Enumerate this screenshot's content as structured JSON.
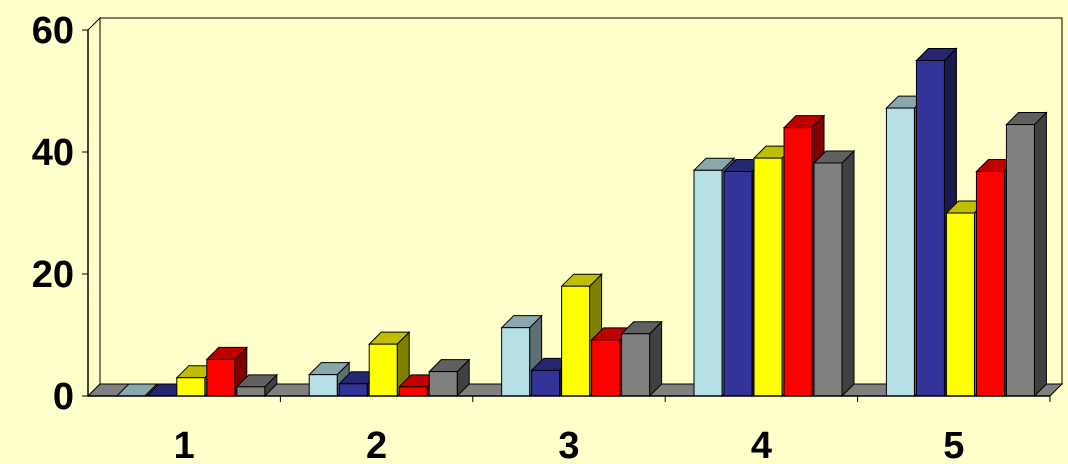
{
  "chart_data": {
    "type": "bar",
    "categories": [
      "1",
      "2",
      "3",
      "4",
      "5"
    ],
    "series": [
      {
        "values": [
          0,
          3.5,
          11.2,
          37,
          47.2
        ],
        "color": "#b7e0e6"
      },
      {
        "values": [
          0,
          2,
          4.2,
          36.8,
          55
        ],
        "color": "#333399"
      },
      {
        "values": [
          3,
          8.5,
          18,
          39,
          30
        ],
        "color": "#ffff00"
      },
      {
        "values": [
          6,
          1.5,
          9.2,
          44,
          36.8
        ],
        "color": "#ff0000"
      },
      {
        "values": [
          1.5,
          4,
          10.2,
          38.2,
          44.5
        ],
        "color": "#808080"
      }
    ],
    "y_ticks": [
      "0",
      "20",
      "40",
      "60"
    ],
    "ylim": [
      0,
      60
    ],
    "grid": false,
    "legend": "none",
    "background": "#ffffcc",
    "style": "3d-clustered-bar"
  }
}
